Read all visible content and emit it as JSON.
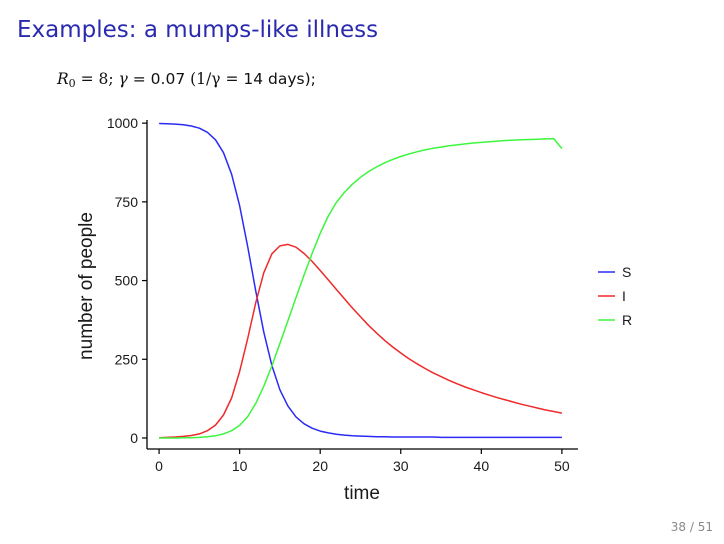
{
  "slide": {
    "title": "Examples: a mumps-like illness",
    "page_number": "38 / 51"
  },
  "formula": {
    "r_symbol": "R",
    "r_subscript": "0",
    "r_value": "= 8;",
    "gamma_symbol": "γ",
    "gamma_value": "= 0.07",
    "inverse_lhs": "(1/γ =",
    "inverse_value": "14 days);"
  },
  "chart_data": {
    "type": "line",
    "xlabel": "time",
    "ylabel": "number of people",
    "xlim": [
      -1.5,
      52
    ],
    "ylim": [
      -35,
      1010
    ],
    "x_ticks": [
      0,
      10,
      20,
      30,
      40,
      50
    ],
    "y_ticks": [
      0,
      250,
      500,
      750,
      1000
    ],
    "grid": false,
    "legend_position": "right",
    "x": [
      0,
      1,
      2,
      3,
      4,
      5,
      6,
      7,
      8,
      9,
      10,
      11,
      12,
      13,
      14,
      15,
      16,
      17,
      18,
      19,
      20,
      21,
      22,
      23,
      24,
      25,
      26,
      27,
      28,
      29,
      30,
      31,
      32,
      33,
      34,
      35,
      36,
      37,
      38,
      39,
      40,
      41,
      42,
      43,
      44,
      45,
      46,
      47,
      48,
      49,
      50
    ],
    "series": [
      {
        "name": "S",
        "color": "#2b2bf5",
        "values": [
          999,
          998,
          997,
          995,
          991,
          984,
          971,
          947,
          906,
          838,
          738,
          608,
          466,
          336,
          230,
          153,
          101,
          67,
          45,
          31,
          22,
          16,
          12,
          9,
          7,
          6,
          5,
          4,
          4,
          3,
          3,
          3,
          3,
          3,
          3,
          2,
          2,
          2,
          2,
          2,
          2,
          2,
          2,
          2,
          2,
          2,
          2,
          2,
          2,
          2,
          2
        ]
      },
      {
        "name": "I",
        "color": "#ee2a2a",
        "values": [
          1,
          2,
          3,
          5,
          8,
          13,
          23,
          41,
          73,
          127,
          211,
          316,
          430,
          525,
          585,
          610,
          615,
          606,
          586,
          561,
          532,
          502,
          472,
          442,
          413,
          385,
          358,
          333,
          310,
          289,
          270,
          252,
          236,
          221,
          207,
          195,
          183,
          172,
          162,
          153,
          144,
          136,
          128,
          121,
          114,
          107,
          101,
          95,
          89,
          84,
          79
        ]
      },
      {
        "name": "R",
        "color": "#3ef53e",
        "values": [
          0,
          0,
          0,
          1,
          1,
          2,
          4,
          7,
          13,
          23,
          40,
          68,
          110,
          164,
          229,
          300,
          373,
          446,
          518,
          586,
          650,
          705,
          748,
          780,
          806,
          828,
          846,
          861,
          874,
          885,
          894,
          902,
          909,
          915,
          920,
          924,
          928,
          931,
          934,
          937,
          939,
          941,
          943,
          945,
          946,
          947,
          948,
          949,
          950,
          951,
          919
        ]
      }
    ]
  }
}
